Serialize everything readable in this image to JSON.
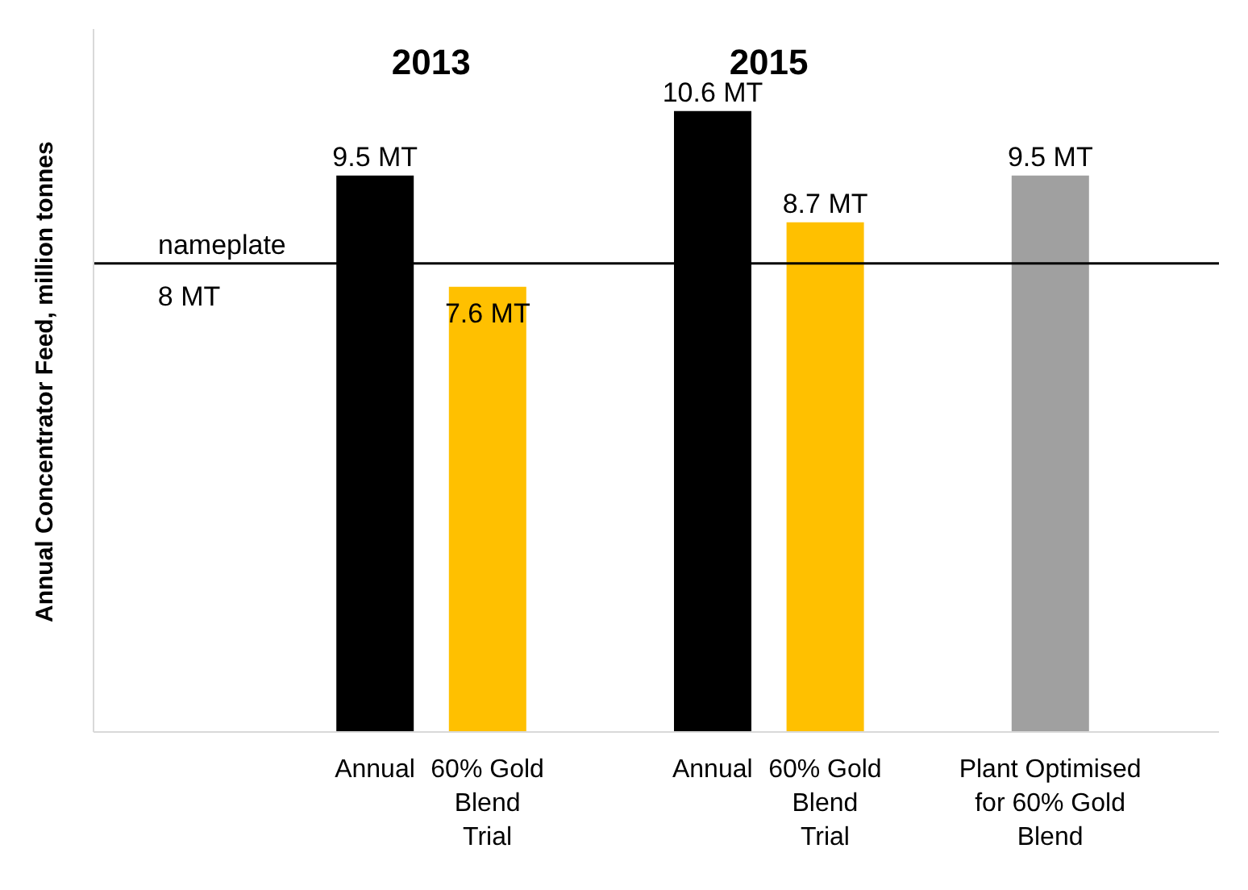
{
  "chart_data": {
    "type": "bar",
    "ylabel": "Annual Concentrator Feed, million tonnes",
    "categories": [
      null,
      null,
      "Annual",
      "60% Gold Blend Trial",
      null,
      "Annual",
      "60% Gold Blend Trial",
      null,
      "Plant Optimised for 60% Gold Blend",
      null
    ],
    "values": [
      null,
      null,
      9.5,
      7.6,
      null,
      10.6,
      8.7,
      null,
      9.5,
      null
    ],
    "value_labels": [
      null,
      null,
      "9.5 MT",
      "7.6 MT",
      null,
      "10.6 MT",
      "8.7 MT",
      null,
      "9.5 MT",
      null
    ],
    "colors": [
      "#000000",
      "#000000",
      "#000000",
      "#ffc000",
      "#000000",
      "#000000",
      "#ffc000",
      "#000000",
      "#a0a0a0",
      "#000000"
    ],
    "ylim": [
      0,
      12
    ],
    "tick_labels": "x",
    "grid": false,
    "legend": false,
    "ref_lines": [
      {
        "axis": "y",
        "value": 8,
        "label": "nameplate",
        "color": "#000000"
      }
    ],
    "annotations": [
      "2013",
      "2015",
      {
        "text": "8 MT",
        "y": 8
      }
    ]
  }
}
